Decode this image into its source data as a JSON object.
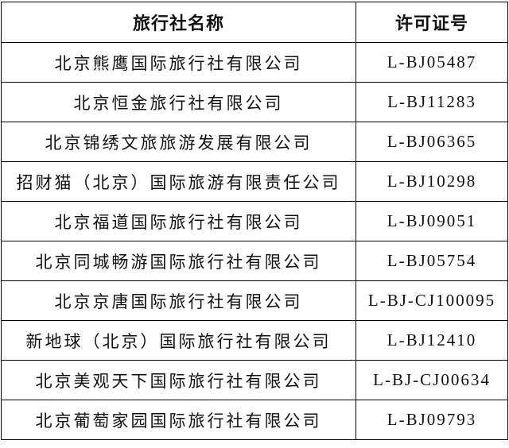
{
  "table": {
    "headers": [
      "旅行社名称",
      "许可证号"
    ],
    "rows": [
      {
        "name": "北京熊鹰国际旅行社有限公司",
        "license": "L-BJ05487"
      },
      {
        "name": "北京恒金旅行社有限公司",
        "license": "L-BJ11283"
      },
      {
        "name": "北京锦绣文旅旅游发展有限公司",
        "license": "L-BJ06365"
      },
      {
        "name": "招财猫（北京）国际旅游有限责任公司",
        "license": "L-BJ10298"
      },
      {
        "name": "北京福道国际旅行社有限公司",
        "license": "L-BJ09051"
      },
      {
        "name": "北京同城畅游国际旅行社有限公司",
        "license": "L-BJ05754"
      },
      {
        "name": "北京京唐国际旅行社有限公司",
        "license": "L-BJ-CJ100095"
      },
      {
        "name": "新地球（北京）国际旅行社有限公司",
        "license": "L-BJ12410"
      },
      {
        "name": "北京美观天下国际旅行社有限公司",
        "license": "L-BJ-CJ00634"
      },
      {
        "name": "北京葡萄家园国际旅行社有限公司",
        "license": "L-BJ09793"
      }
    ]
  }
}
